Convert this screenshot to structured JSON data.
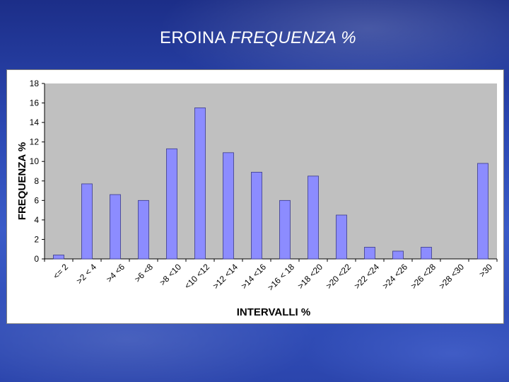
{
  "slide": {
    "title_plain": "EROINA",
    "title_italic": "FREQUENZA %"
  },
  "colors": {
    "bar_fill": "#8c8cff",
    "bar_stroke": "#3a3a8a",
    "plot_bg": "#c0c0c0",
    "slide_bg": "#2c49b4"
  },
  "chart_data": {
    "type": "bar",
    "title": "",
    "xlabel": "INTERVALLI %",
    "ylabel": "FREQUENZA %",
    "ylim": [
      0,
      18
    ],
    "yticks": [
      0,
      2,
      4,
      6,
      8,
      10,
      12,
      14,
      16,
      18
    ],
    "grid": false,
    "legend": "none",
    "categories": [
      "<= 2",
      ">2 < 4",
      ">4 <6",
      ">6 <8",
      ">8 <10",
      "<10 <12",
      ">12 <14",
      ">14 <16",
      ">16 < 18",
      ">18 <20",
      ">20 <22",
      ">22 <24",
      ">24 <26",
      ">26 <28",
      ">28 <30",
      ">30"
    ],
    "values": [
      0.4,
      7.7,
      6.6,
      6.0,
      11.3,
      15.5,
      10.9,
      8.9,
      6.0,
      8.5,
      4.5,
      1.2,
      0.8,
      1.2,
      0,
      9.8
    ]
  }
}
